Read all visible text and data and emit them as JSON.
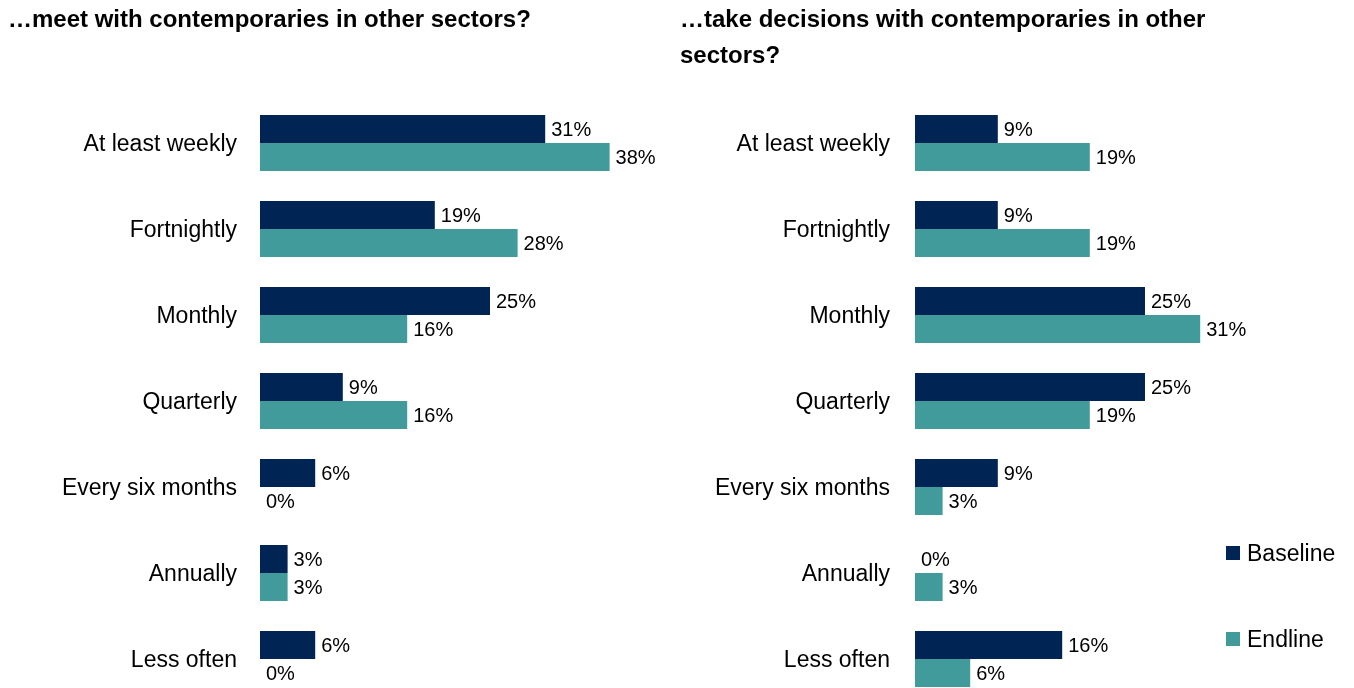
{
  "chart_data": [
    {
      "type": "bar",
      "orientation": "horizontal",
      "title": "…meet with contemporaries in other sectors?",
      "categories": [
        "At least weekly",
        "Fortnightly",
        "Monthly",
        "Quarterly",
        "Every six months",
        "Annually",
        "Less often"
      ],
      "series": [
        {
          "color": "#002554",
          "values": [
            31,
            19,
            25,
            9,
            6,
            3,
            6
          ],
          "value_labels": [
            "31%",
            "19%",
            "25%",
            "9%",
            "6%",
            "3%",
            "6%"
          ]
        },
        {
          "color": "#429b9b",
          "values": [
            38,
            28,
            16,
            16,
            0,
            3,
            0
          ],
          "value_labels": [
            "38%",
            "28%",
            "16%",
            "16%",
            "0%",
            "3%",
            "0%"
          ]
        }
      ],
      "legend": false
    },
    {
      "type": "bar",
      "orientation": "horizontal",
      "title": "…take decisions with contemporaries in other sectors?",
      "categories": [
        "At least weekly",
        "Fortnightly",
        "Monthly",
        "Quarterly",
        "Every six months",
        "Annually",
        "Less often"
      ],
      "series": [
        {
          "name": "Baseline",
          "color": "#002554",
          "values": [
            9,
            9,
            25,
            25,
            9,
            0,
            16
          ],
          "value_labels": [
            "9%",
            "9%",
            "25%",
            "25%",
            "9%",
            "0%",
            "16%"
          ]
        },
        {
          "name": "Endline",
          "color": "#429b9b",
          "values": [
            19,
            19,
            31,
            19,
            3,
            3,
            6
          ],
          "value_labels": [
            "19%",
            "19%",
            "31%",
            "19%",
            "3%",
            "3%",
            "6%"
          ]
        }
      ],
      "legend": "bottom right"
    }
  ]
}
